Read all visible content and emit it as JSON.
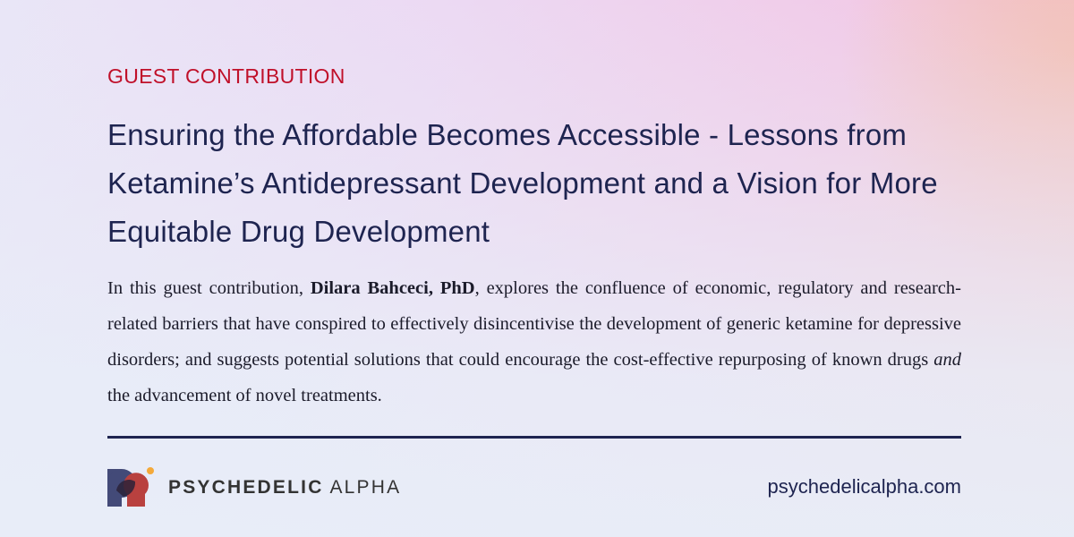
{
  "kicker": "GUEST CONTRIBUTION",
  "title": "Ensuring the Affordable Becomes Accessible - Lessons from Ketamine’s Antidepressant Development and a Vision for More Equitable Drug Development",
  "summary": {
    "before": "In this guest contribution, ",
    "author": "Dilara Bahceci, PhD",
    "middle": ", explores the confluence of economic, regulatory and research-related barriers that have conspired to effectively disincentivise the development of generic ketamine for depressive disorders; and suggests potential solutions that could encourage the cost-effective repurposing of known drugs ",
    "emphasis": "and",
    "after": " the advancement of novel treatments."
  },
  "brand": {
    "bold": "PSYCHEDELIC",
    "light": "ALPHA",
    "logo_text": "PSYCHEDELIC ALPHA"
  },
  "url": "psychedelicalpha.com",
  "colors": {
    "accent": "#c0102a",
    "navy": "#1e2450",
    "logo_blue": "#434a78",
    "logo_red": "#b9413f",
    "logo_dot": "#f4a93a"
  }
}
